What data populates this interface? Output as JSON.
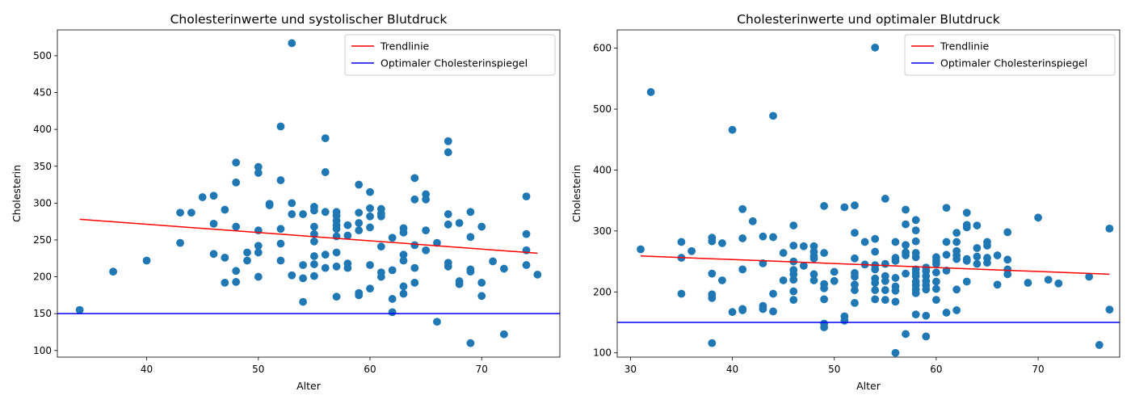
{
  "colors": {
    "points": "#1f77b4",
    "trend": "#ff0000",
    "optimal": "#0000ff"
  },
  "chart_data": [
    {
      "type": "scatter",
      "title": "Cholesterinwerte und systolischer Blutdruck",
      "xlabel": "Alter",
      "ylabel": "Cholesterin",
      "xlim": [
        32,
        77
      ],
      "ylim": [
        91,
        535
      ],
      "xticks": [
        40,
        50,
        60,
        70
      ],
      "yticks": [
        100,
        150,
        200,
        250,
        300,
        350,
        400,
        450,
        500
      ],
      "grid": false,
      "legend_position": "top-right",
      "legend": [
        "Trendlinie",
        "Optimaler Cholesterinspiegel"
      ],
      "trendline": {
        "x": [
          34,
          75
        ],
        "y": [
          278,
          232
        ]
      },
      "optimal_level": 150,
      "points": [
        [
          34,
          155
        ],
        [
          37,
          207
        ],
        [
          40,
          222
        ],
        [
          43,
          287
        ],
        [
          43,
          246
        ],
        [
          44,
          287
        ],
        [
          45,
          308
        ],
        [
          46,
          310
        ],
        [
          46,
          272
        ],
        [
          46,
          231
        ],
        [
          47,
          291
        ],
        [
          47,
          226
        ],
        [
          47,
          192
        ],
        [
          48,
          355
        ],
        [
          48,
          328
        ],
        [
          48,
          268
        ],
        [
          48,
          208
        ],
        [
          48,
          193
        ],
        [
          49,
          233
        ],
        [
          49,
          222
        ],
        [
          50,
          349
        ],
        [
          50,
          341
        ],
        [
          50,
          263
        ],
        [
          50,
          242
        ],
        [
          50,
          233
        ],
        [
          50,
          200
        ],
        [
          51,
          299
        ],
        [
          51,
          297
        ],
        [
          52,
          404
        ],
        [
          52,
          331
        ],
        [
          52,
          265
        ],
        [
          52,
          245
        ],
        [
          52,
          222
        ],
        [
          53,
          517
        ],
        [
          53,
          300
        ],
        [
          53,
          285
        ],
        [
          53,
          202
        ],
        [
          54,
          285
        ],
        [
          54,
          216
        ],
        [
          54,
          198
        ],
        [
          54,
          166
        ],
        [
          55,
          295
        ],
        [
          55,
          290
        ],
        [
          55,
          268
        ],
        [
          55,
          258
        ],
        [
          55,
          248
        ],
        [
          55,
          228
        ],
        [
          55,
          217
        ],
        [
          55,
          201
        ],
        [
          56,
          388
        ],
        [
          56,
          342
        ],
        [
          56,
          288
        ],
        [
          56,
          230
        ],
        [
          56,
          212
        ],
        [
          57,
          288
        ],
        [
          57,
          283
        ],
        [
          57,
          276
        ],
        [
          57,
          270
        ],
        [
          57,
          265
        ],
        [
          57,
          255
        ],
        [
          57,
          233
        ],
        [
          57,
          214
        ],
        [
          57,
          173
        ],
        [
          58,
          270
        ],
        [
          58,
          256
        ],
        [
          58,
          218
        ],
        [
          58,
          212
        ],
        [
          59,
          325
        ],
        [
          59,
          287
        ],
        [
          59,
          273
        ],
        [
          59,
          263
        ],
        [
          59,
          178
        ],
        [
          59,
          175
        ],
        [
          60,
          315
        ],
        [
          60,
          293
        ],
        [
          60,
          282
        ],
        [
          60,
          267
        ],
        [
          60,
          216
        ],
        [
          60,
          184
        ],
        [
          61,
          292
        ],
        [
          61,
          286
        ],
        [
          61,
          282
        ],
        [
          61,
          241
        ],
        [
          61,
          206
        ],
        [
          61,
          200
        ],
        [
          62,
          253
        ],
        [
          62,
          209
        ],
        [
          62,
          170
        ],
        [
          62,
          152
        ],
        [
          63,
          266
        ],
        [
          63,
          260
        ],
        [
          63,
          230
        ],
        [
          63,
          222
        ],
        [
          63,
          187
        ],
        [
          63,
          177
        ],
        [
          64,
          334
        ],
        [
          64,
          305
        ],
        [
          64,
          243
        ],
        [
          64,
          212
        ],
        [
          64,
          192
        ],
        [
          65,
          312
        ],
        [
          65,
          305
        ],
        [
          65,
          263
        ],
        [
          65,
          236
        ],
        [
          66,
          246
        ],
        [
          66,
          139
        ],
        [
          67,
          384
        ],
        [
          67,
          369
        ],
        [
          67,
          285
        ],
        [
          67,
          271
        ],
        [
          67,
          219
        ],
        [
          67,
          214
        ],
        [
          68,
          273
        ],
        [
          68,
          194
        ],
        [
          68,
          190
        ],
        [
          69,
          288
        ],
        [
          69,
          254
        ],
        [
          69,
          210
        ],
        [
          69,
          207
        ],
        [
          69,
          110
        ],
        [
          70,
          268
        ],
        [
          70,
          192
        ],
        [
          70,
          174
        ],
        [
          71,
          221
        ],
        [
          72,
          211
        ],
        [
          72,
          122
        ],
        [
          74,
          309
        ],
        [
          74,
          258
        ],
        [
          74,
          236
        ],
        [
          74,
          216
        ],
        [
          75,
          203
        ]
      ]
    },
    {
      "type": "scatter",
      "title": "Cholesterinwerte und optimaler Blutdruck",
      "xlabel": "Alter",
      "ylabel": "Cholesterin",
      "xlim": [
        28.7,
        78
      ],
      "ylim": [
        93,
        630
      ],
      "xticks": [
        30,
        40,
        50,
        60,
        70
      ],
      "yticks": [
        100,
        200,
        300,
        400,
        500,
        600
      ],
      "grid": false,
      "legend_position": "top-right",
      "legend": [
        "Trendlinie",
        "Optimaler Cholesterinspiegel"
      ],
      "trendline": {
        "x": [
          31,
          77
        ],
        "y": [
          259,
          229
        ]
      },
      "optimal_level": 150,
      "points": [
        [
          31,
          270
        ],
        [
          32,
          528
        ],
        [
          35,
          282
        ],
        [
          35,
          256
        ],
        [
          35,
          197
        ],
        [
          36,
          267
        ],
        [
          38,
          289
        ],
        [
          38,
          283
        ],
        [
          38,
          230
        ],
        [
          38,
          196
        ],
        [
          38,
          190
        ],
        [
          38,
          116
        ],
        [
          39,
          280
        ],
        [
          39,
          219
        ],
        [
          40,
          466
        ],
        [
          40,
          167
        ],
        [
          41,
          336
        ],
        [
          41,
          288
        ],
        [
          41,
          237
        ],
        [
          41,
          172
        ],
        [
          41,
          170
        ],
        [
          42,
          316
        ],
        [
          43,
          291
        ],
        [
          43,
          247
        ],
        [
          43,
          177
        ],
        [
          43,
          172
        ],
        [
          44,
          489
        ],
        [
          44,
          290
        ],
        [
          44,
          197
        ],
        [
          44,
          168
        ],
        [
          45,
          264
        ],
        [
          45,
          219
        ],
        [
          46,
          309
        ],
        [
          46,
          276
        ],
        [
          46,
          250
        ],
        [
          46,
          236
        ],
        [
          46,
          229
        ],
        [
          46,
          220
        ],
        [
          46,
          201
        ],
        [
          46,
          187
        ],
        [
          47,
          275
        ],
        [
          47,
          243
        ],
        [
          48,
          275
        ],
        [
          48,
          266
        ],
        [
          48,
          259
        ],
        [
          48,
          255
        ],
        [
          48,
          229
        ],
        [
          48,
          219
        ],
        [
          49,
          341
        ],
        [
          49,
          264
        ],
        [
          49,
          213
        ],
        [
          49,
          206
        ],
        [
          49,
          188
        ],
        [
          49,
          148
        ],
        [
          49,
          142
        ],
        [
          50,
          233
        ],
        [
          50,
          218
        ],
        [
          51,
          339
        ],
        [
          51,
          160
        ],
        [
          51,
          153
        ],
        [
          52,
          342
        ],
        [
          52,
          297
        ],
        [
          52,
          255
        ],
        [
          52,
          231
        ],
        [
          52,
          225
        ],
        [
          52,
          212
        ],
        [
          52,
          203
        ],
        [
          52,
          182
        ],
        [
          53,
          282
        ],
        [
          53,
          245
        ],
        [
          54,
          601
        ],
        [
          54,
          287
        ],
        [
          54,
          266
        ],
        [
          54,
          244
        ],
        [
          54,
          237
        ],
        [
          54,
          222
        ],
        [
          54,
          215
        ],
        [
          54,
          203
        ],
        [
          54,
          188
        ],
        [
          55,
          353
        ],
        [
          55,
          246
        ],
        [
          55,
          226
        ],
        [
          55,
          218
        ],
        [
          55,
          203
        ],
        [
          55,
          187
        ],
        [
          56,
          282
        ],
        [
          56,
          256
        ],
        [
          56,
          251
        ],
        [
          56,
          223
        ],
        [
          56,
          209
        ],
        [
          56,
          202
        ],
        [
          56,
          184
        ],
        [
          56,
          100
        ],
        [
          57,
          335
        ],
        [
          57,
          311
        ],
        [
          57,
          277
        ],
        [
          57,
          265
        ],
        [
          57,
          260
        ],
        [
          57,
          230
        ],
        [
          57,
          131
        ],
        [
          58,
          318
        ],
        [
          58,
          301
        ],
        [
          58,
          283
        ],
        [
          58,
          264
        ],
        [
          58,
          257
        ],
        [
          58,
          237
        ],
        [
          58,
          231
        ],
        [
          58,
          226
        ],
        [
          58,
          217
        ],
        [
          58,
          211
        ],
        [
          58,
          204
        ],
        [
          58,
          198
        ],
        [
          58,
          163
        ],
        [
          59,
          240
        ],
        [
          59,
          234
        ],
        [
          59,
          226
        ],
        [
          59,
          218
        ],
        [
          59,
          211
        ],
        [
          59,
          204
        ],
        [
          59,
          161
        ],
        [
          59,
          127
        ],
        [
          60,
          257
        ],
        [
          60,
          251
        ],
        [
          60,
          246
        ],
        [
          60,
          232
        ],
        [
          60,
          217
        ],
        [
          60,
          205
        ],
        [
          60,
          187
        ],
        [
          61,
          338
        ],
        [
          61,
          282
        ],
        [
          61,
          261
        ],
        [
          61,
          235
        ],
        [
          61,
          166
        ],
        [
          62,
          297
        ],
        [
          62,
          282
        ],
        [
          62,
          267
        ],
        [
          62,
          260
        ],
        [
          62,
          254
        ],
        [
          62,
          204
        ],
        [
          62,
          170
        ],
        [
          63,
          330
        ],
        [
          63,
          310
        ],
        [
          63,
          306
        ],
        [
          63,
          254
        ],
        [
          63,
          251
        ],
        [
          63,
          217
        ],
        [
          64,
          309
        ],
        [
          64,
          272
        ],
        [
          64,
          258
        ],
        [
          64,
          246
        ],
        [
          65,
          282
        ],
        [
          65,
          276
        ],
        [
          65,
          256
        ],
        [
          65,
          248
        ],
        [
          66,
          260
        ],
        [
          66,
          212
        ],
        [
          67,
          298
        ],
        [
          67,
          253
        ],
        [
          67,
          237
        ],
        [
          67,
          229
        ],
        [
          69,
          215
        ],
        [
          70,
          322
        ],
        [
          71,
          220
        ],
        [
          72,
          214
        ],
        [
          75,
          225
        ],
        [
          76,
          113
        ],
        [
          77,
          304
        ],
        [
          77,
          171
        ]
      ]
    }
  ]
}
